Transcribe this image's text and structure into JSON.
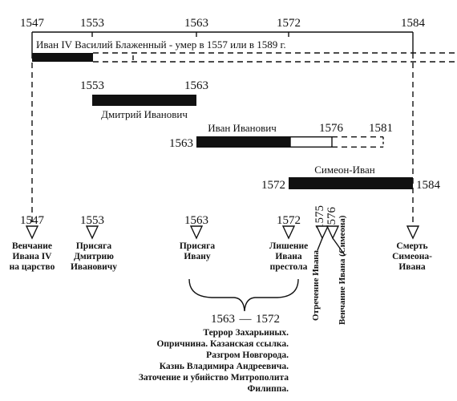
{
  "top_years": [
    "1547",
    "1553",
    "1563",
    "1572",
    "1584"
  ],
  "top_title": "Иван IV  Василий Блаженный - умер в 1557 или в 1589 г.",
  "dmitry": {
    "start": "1553",
    "end": "1563",
    "name": "Дмитрий Иванович"
  },
  "ivan_ivanovich": {
    "name": "Иван Иванович",
    "start": "1563",
    "mid": "1576",
    "end": "1581"
  },
  "simeon": {
    "name": "Симеон-Иван",
    "start": "1572",
    "end": "1584"
  },
  "events": [
    {
      "year": "1547",
      "lines": [
        "Венчание",
        "Ивана IV",
        "на царство"
      ]
    },
    {
      "year": "1553",
      "lines": [
        "Присяга",
        "Дмитрию",
        "Ивановичу"
      ]
    },
    {
      "year": "1563",
      "lines": [
        "Присяга",
        "Ивану"
      ]
    },
    {
      "year": "1572",
      "lines": [
        "Лишение",
        "Ивана",
        "престола"
      ]
    },
    {
      "year": "1575",
      "text": "Отречение Ивана"
    },
    {
      "year": "1576",
      "text": "Венчание Ивана (Симеона)"
    },
    {
      "year": "",
      "lines": [
        "Смерть",
        "Симеона-",
        "Ивана"
      ]
    }
  ],
  "period": {
    "from": "1563",
    "dash": "—",
    "to": "1572"
  },
  "notes": [
    "Террор Захарьиных.",
    "Опричнина. Казанская ссылка.",
    "Разгром Новгорода.",
    "Казнь Владимира Андреевича.",
    "Заточение и убийство Митрополита",
    "Филиппа."
  ]
}
